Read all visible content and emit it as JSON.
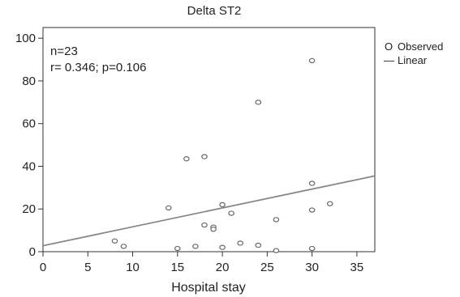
{
  "chart_data": {
    "type": "scatter",
    "title": "Delta ST2",
    "xlabel": "Hospital stay",
    "ylabel": "",
    "xlim": [
      0,
      37
    ],
    "ylim": [
      0,
      105
    ],
    "xticks": [
      0,
      5,
      10,
      15,
      20,
      25,
      30,
      35
    ],
    "yticks": [
      0,
      20,
      40,
      60,
      80,
      100
    ],
    "annotations": [
      "n=23",
      "r= 0.346; p=0.106"
    ],
    "legend": {
      "position": "right",
      "entries": [
        {
          "symbol": "O",
          "label": "Observed"
        },
        {
          "symbol": "—",
          "label": "Linear"
        }
      ]
    },
    "series": [
      {
        "name": "Observed",
        "points": [
          [
            8,
            5
          ],
          [
            9,
            2.5
          ],
          [
            14,
            20.5
          ],
          [
            15,
            1.5
          ],
          [
            16,
            43.5
          ],
          [
            17,
            2.5
          ],
          [
            18,
            44.5
          ],
          [
            18,
            12.5
          ],
          [
            19,
            11.5
          ],
          [
            19,
            10.5
          ],
          [
            20,
            22
          ],
          [
            20,
            2
          ],
          [
            21,
            18
          ],
          [
            22,
            4
          ],
          [
            24,
            70
          ],
          [
            24,
            3
          ],
          [
            26,
            15
          ],
          [
            26,
            0.5
          ],
          [
            30,
            89.5
          ],
          [
            30,
            32
          ],
          [
            30,
            19.5
          ],
          [
            30,
            1.5
          ],
          [
            32,
            22.5
          ]
        ]
      },
      {
        "name": "Linear",
        "line": [
          [
            0,
            2.8
          ],
          [
            37,
            35.5
          ]
        ]
      }
    ],
    "colors": {
      "point_stroke": "#666666",
      "line": "#888888",
      "frame": "#333333"
    }
  }
}
